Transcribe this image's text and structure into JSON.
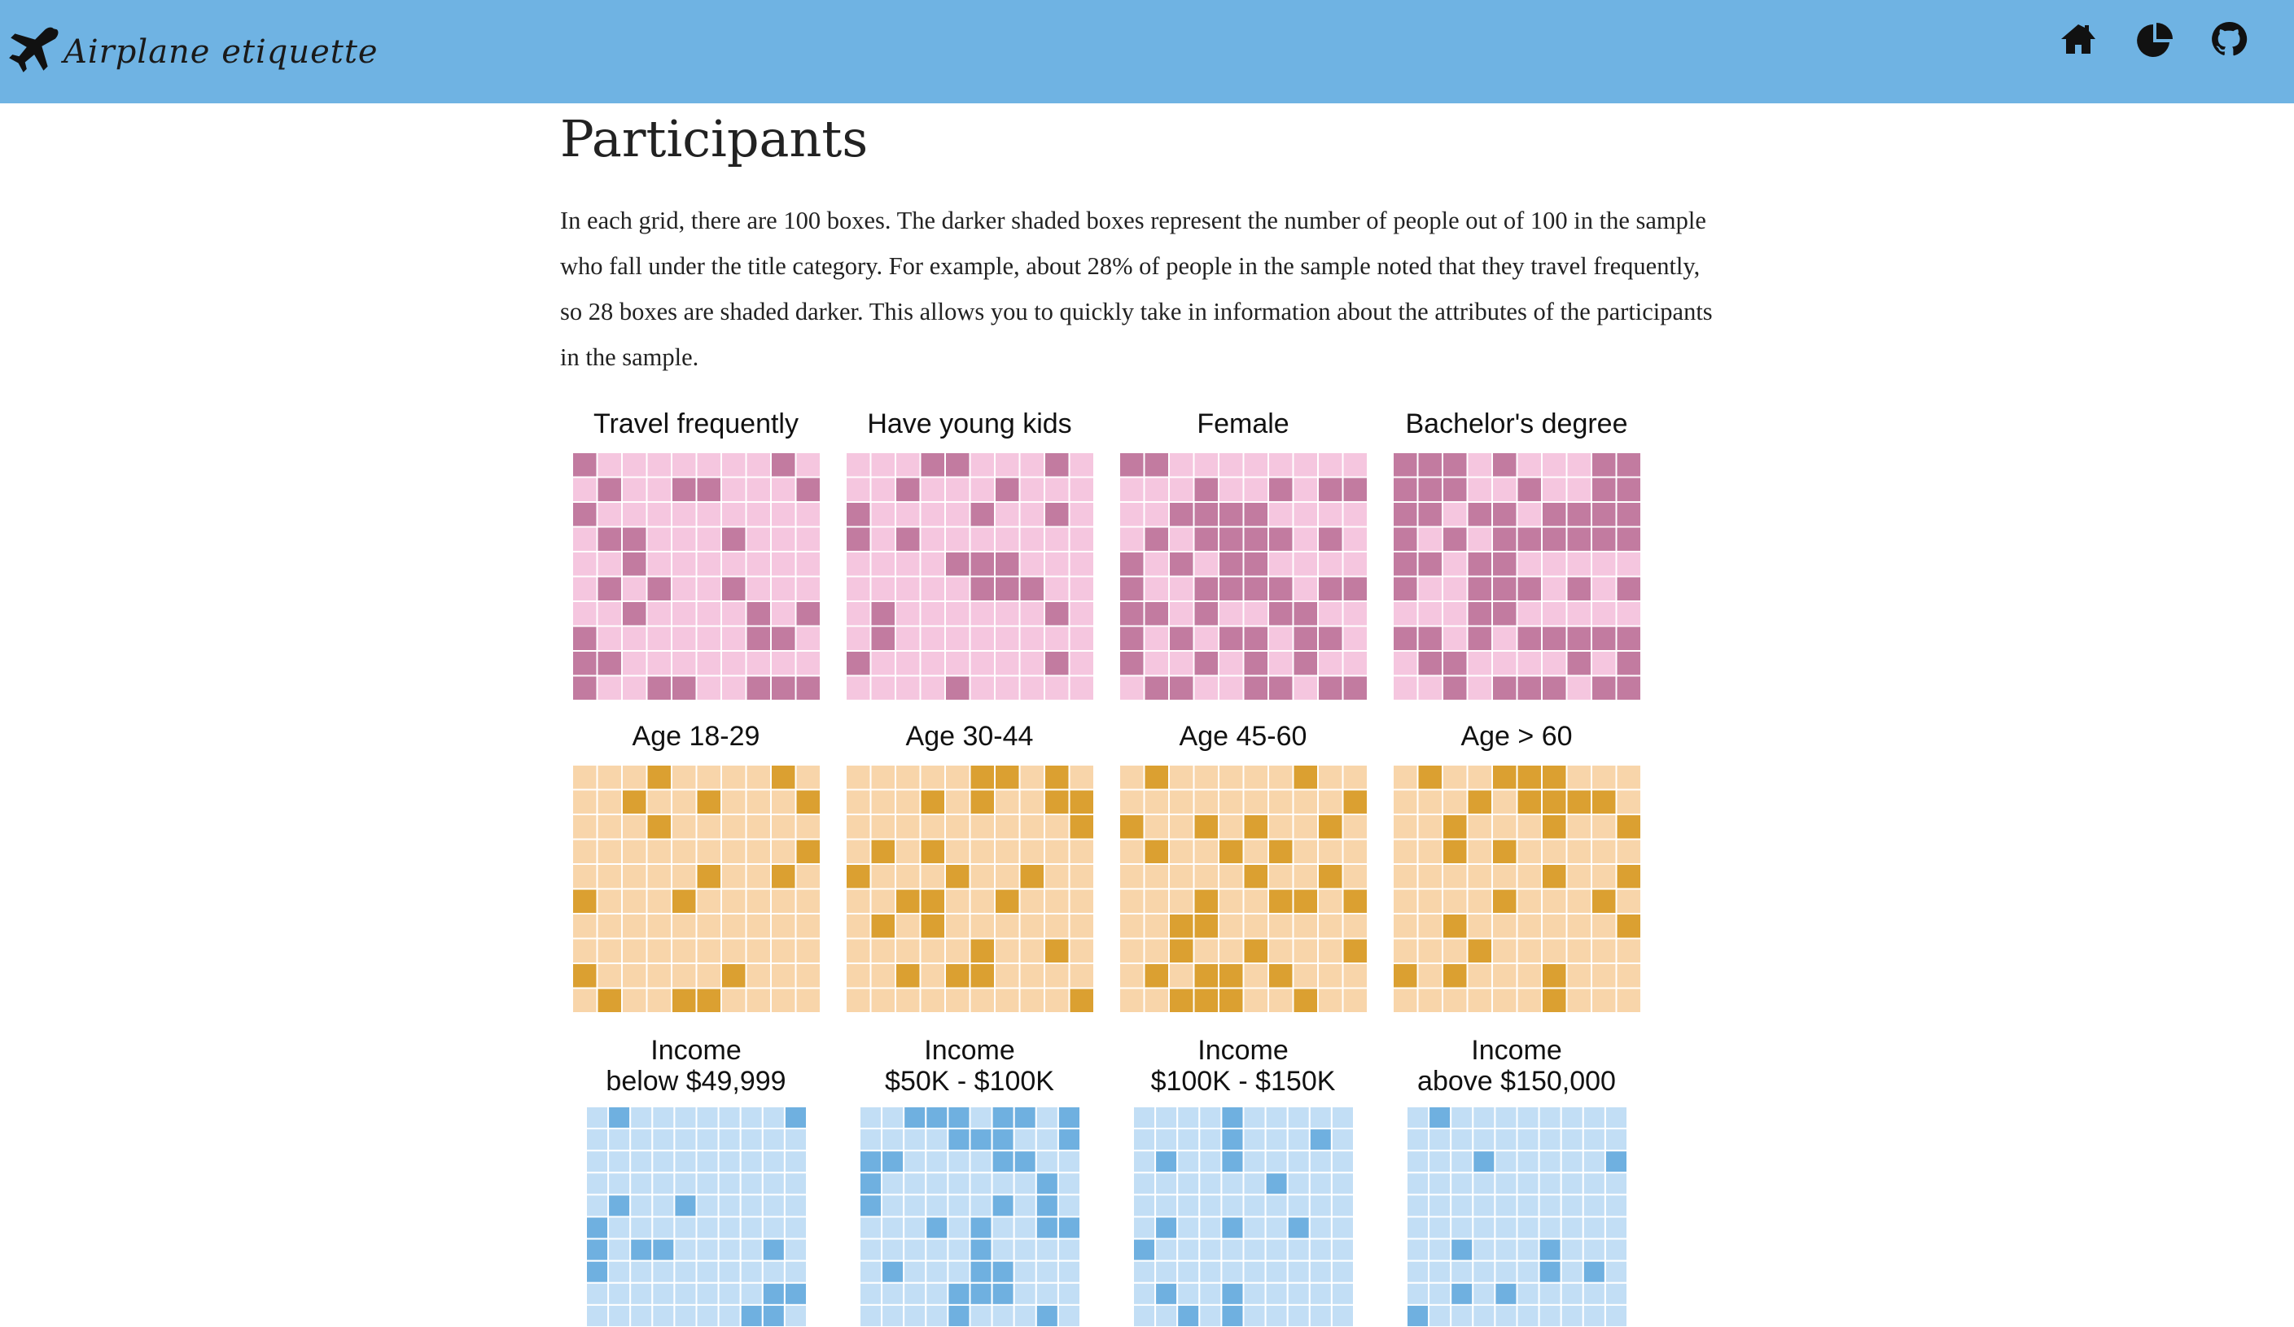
{
  "header": {
    "brand": "Airplane etiquette",
    "brand_icon": "airplane-icon",
    "nav": [
      {
        "name": "home-icon"
      },
      {
        "name": "pie-chart-icon"
      },
      {
        "name": "github-icon"
      }
    ],
    "bar_color": "#6fb3e3"
  },
  "main": {
    "title": "Participants",
    "intro": "In each grid, there are 100 boxes. The darker shaded boxes represent the number of people out of 100 in the sample who fall under the title category. For example, about 28% of people in the sample noted that they travel frequently, so 28 boxes are shaded darker. This allows you to quickly take in information about the attributes of the participants in the sample."
  },
  "palettes": {
    "pink": {
      "light": "#f5c6df",
      "dark": "#c27ba0"
    },
    "orange": {
      "light": "#f8d5aa",
      "dark": "#dba031"
    },
    "blue": {
      "light": "#c2def5",
      "dark": "#6fb0e0"
    }
  },
  "chart_data": [
    {
      "type": "waffle",
      "title": "Travel frequently",
      "total": 100,
      "shaded": 28,
      "palette": "pink"
    },
    {
      "type": "waffle",
      "title": "Have young kids",
      "total": 100,
      "shaded": 22,
      "palette": "pink"
    },
    {
      "type": "waffle",
      "title": "Female",
      "total": 100,
      "shaded": 48,
      "palette": "pink"
    },
    {
      "type": "waffle",
      "title": "Bachelor's degree",
      "total": 100,
      "shaded": 58,
      "palette": "pink"
    },
    {
      "type": "waffle",
      "title": "Age 18-29",
      "total": 100,
      "shaded": 16,
      "palette": "orange"
    },
    {
      "type": "waffle",
      "title": "Age 30-44",
      "total": 100,
      "shaded": 24,
      "palette": "orange"
    },
    {
      "type": "waffle",
      "title": "Age 45-60",
      "total": 100,
      "shaded": 29,
      "palette": "orange"
    },
    {
      "type": "waffle",
      "title": "Age > 60",
      "total": 100,
      "shaded": 25,
      "palette": "orange"
    },
    {
      "type": "waffle",
      "title_line1": "Income",
      "title_line2": "below $49,999",
      "total": 100,
      "shaded": 14,
      "palette": "blue"
    },
    {
      "type": "waffle",
      "title_line1": "Income",
      "title_line2": "$50K - $100K",
      "total": 100,
      "shaded": 32,
      "palette": "blue"
    },
    {
      "type": "waffle",
      "title_line1": "Income",
      "title_line2": "$100K - $150K",
      "total": 100,
      "shaded": 14,
      "palette": "blue"
    },
    {
      "type": "waffle",
      "title_line1": "Income",
      "title_line2": "above $150,000",
      "total": 100,
      "shaded": 10,
      "palette": "blue"
    }
  ]
}
